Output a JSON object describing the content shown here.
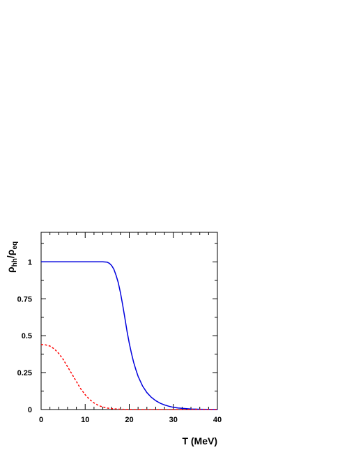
{
  "chart_data": {
    "type": "line",
    "title": "",
    "xlabel": "T (MeV)",
    "ylabel_main": "ρ",
    "ylabel_main_sub": "hh",
    "ylabel_slash": "/ρ",
    "ylabel_slash_sub": "eq",
    "xlim": [
      0,
      40
    ],
    "ylim": [
      0,
      1.2
    ],
    "x_ticks": [
      0,
      10,
      20,
      30,
      40
    ],
    "x_tick_labels": [
      "0",
      "10",
      "20",
      "30",
      "40"
    ],
    "y_ticks": [
      0,
      0.25,
      0.5,
      0.75,
      1
    ],
    "y_tick_labels": [
      "0",
      "0.25",
      "0.5",
      "0.75",
      "1"
    ],
    "grid": false,
    "series": [
      {
        "style": "solid",
        "color": "#0000dd",
        "x": [
          0,
          5,
          10,
          14,
          15,
          15.5,
          16,
          16.5,
          17,
          17.5,
          18,
          18.5,
          19,
          19.5,
          20,
          20.5,
          21,
          21.5,
          22,
          23,
          24,
          25,
          26,
          27,
          28,
          29,
          30,
          31,
          32,
          33,
          34,
          35,
          36,
          38,
          40
        ],
        "y": [
          1.0,
          1.0,
          1.0,
          1.0,
          0.998,
          0.99,
          0.975,
          0.95,
          0.91,
          0.86,
          0.79,
          0.71,
          0.62,
          0.53,
          0.45,
          0.38,
          0.32,
          0.27,
          0.225,
          0.16,
          0.115,
          0.083,
          0.06,
          0.043,
          0.031,
          0.022,
          0.015,
          0.011,
          0.008,
          0.006,
          0.004,
          0.003,
          0.002,
          0.001,
          0.0
        ]
      },
      {
        "style": "dashed",
        "color": "#ff0000",
        "x": [
          0,
          1,
          2,
          3,
          4,
          5,
          6,
          7,
          8,
          9,
          10,
          11,
          12,
          13,
          14,
          15,
          16,
          17,
          18,
          20,
          22,
          25,
          30,
          40
        ],
        "y": [
          0.44,
          0.438,
          0.43,
          0.41,
          0.38,
          0.34,
          0.29,
          0.24,
          0.19,
          0.14,
          0.1,
          0.068,
          0.045,
          0.028,
          0.017,
          0.01,
          0.006,
          0.004,
          0.002,
          0.001,
          0.0,
          0.0,
          0.0,
          0.0
        ]
      }
    ]
  }
}
